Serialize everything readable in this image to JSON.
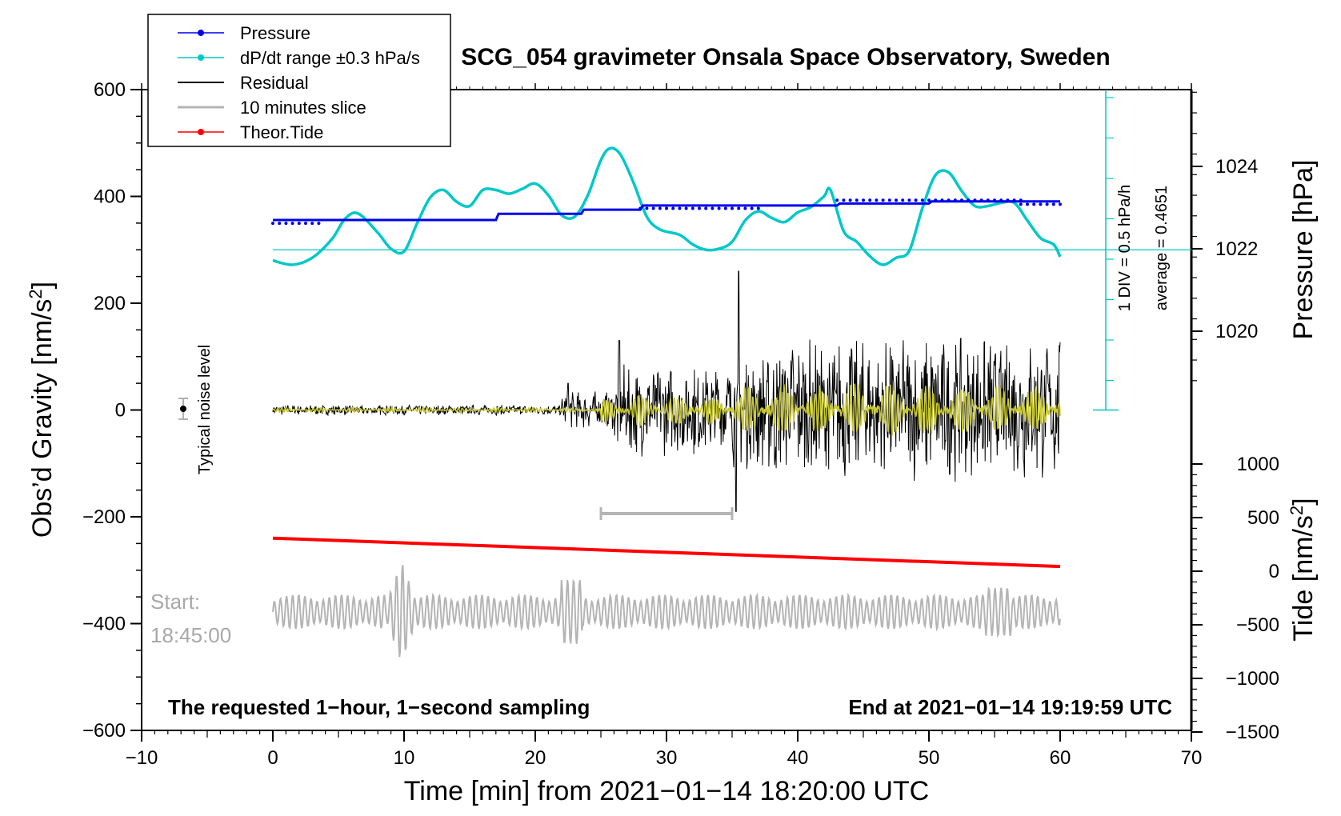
{
  "chart_data": {
    "type": "line",
    "title": "SCG_054 gravimeter Onsala Space Observatory, Sweden",
    "xlabel": "Time [min] from 2021−01−14 18:20:00 UTC",
    "xlim": [
      -10,
      70
    ],
    "x_ticks": [
      -10,
      0,
      10,
      20,
      30,
      40,
      50,
      60,
      70
    ],
    "x_tick_labels": [
      "−10",
      "0",
      "10",
      "20",
      "30",
      "40",
      "50",
      "60",
      "70"
    ],
    "left_axis": {
      "label": "Obs’d Gravity [nm/s²]",
      "label_main": "Obs’d Gravity [nm/s",
      "label_sup": "2",
      "label_tail": "]",
      "ylim": [
        -600,
        600
      ],
      "ticks": [
        -600,
        -400,
        -200,
        0,
        200,
        400,
        600
      ],
      "tick_labels": [
        "−600",
        "−400",
        "−200",
        "0",
        "200",
        "400",
        "600"
      ]
    },
    "right_pressure_axis": {
      "label": "Pressure [hPa]",
      "ticks": [
        1020,
        1022,
        1024
      ],
      "tick_labels": [
        "1020",
        "1022",
        "1024"
      ]
    },
    "right_tide_axis": {
      "label": "Tide [nm/s²]",
      "label_main": "Tide [nm/s",
      "label_sup": "2",
      "label_tail": "]",
      "ticks": [
        1000,
        500,
        0,
        -500,
        -1000,
        -1500
      ],
      "tick_labels": [
        "1000",
        "500",
        "0",
        "−500",
        "−1000",
        "−1500"
      ]
    },
    "legend": {
      "position": "top-left",
      "entries": [
        {
          "label": "Pressure",
          "color": "#0000ee",
          "style": "line-dot"
        },
        {
          "label": "dP/dt range ±0.3 hPa/s",
          "color": "#00c8c8",
          "style": "line-dot"
        },
        {
          "label": "Residual",
          "color": "#000000",
          "style": "line"
        },
        {
          "label": "10 minutes slice",
          "color": "#b4b4b4",
          "style": "line"
        },
        {
          "label": "Theor.Tide",
          "color": "#ff0000",
          "style": "line-dot"
        }
      ]
    },
    "series": [
      {
        "name": "Pressure",
        "color": "#0000ee",
        "x": [
          0,
          4,
          4.5,
          17,
          17.2,
          23.5,
          23.7,
          28,
          28.2,
          43,
          43.2,
          50,
          50.2,
          60
        ],
        "y": [
          1022.7,
          1022.7,
          1022.7,
          1022.7,
          1022.85,
          1022.85,
          1022.95,
          1022.95,
          1023.05,
          1023.05,
          1023.1,
          1023.1,
          1023.15,
          1023.15
        ]
      },
      {
        "name": "dP/dt",
        "color": "#00c8c8",
        "x": [
          0,
          1.5,
          3,
          4.5,
          5.5,
          6.5,
          8,
          9,
          10,
          11,
          12,
          13,
          14,
          15,
          16,
          17,
          18,
          19,
          20,
          21,
          22,
          23,
          24,
          25,
          25.7,
          26.5,
          27.5,
          28.5,
          29.5,
          31,
          32,
          33,
          34,
          35,
          36,
          37,
          38,
          39,
          40,
          41,
          42,
          42.5,
          43.5,
          44.5,
          45.5,
          46.5,
          47.5,
          48.5,
          49.5,
          50.5,
          51.5,
          52.5,
          53.5,
          54.5,
          55.5,
          56.5,
          57.5,
          58.5,
          59.5,
          60
        ],
        "y": [
          280,
          272,
          285,
          320,
          358,
          368,
          332,
          302,
          297,
          350,
          398,
          412,
          390,
          382,
          412,
          412,
          405,
          414,
          424,
          402,
          365,
          362,
          402,
          468,
          490,
          478,
          425,
          362,
          338,
          328,
          310,
          300,
          302,
          315,
          355,
          372,
          360,
          352,
          370,
          380,
          400,
          412,
          335,
          315,
          288,
          272,
          285,
          298,
          378,
          440,
          445,
          410,
          382,
          382,
          388,
          388,
          355,
          322,
          310,
          287
        ]
      },
      {
        "name": "Theor.Tide",
        "color": "#ff0000",
        "x": [
          0,
          60
        ],
        "y": [
          -240,
          -293
        ]
      }
    ],
    "pressure_average_line_y": 300,
    "scale_annotation": {
      "line1": "1 DIV = 0.5 hPa/h",
      "line2": "average = 0.4651"
    },
    "noise_label": "Typical noise level",
    "start_label_line1": "Start:",
    "start_label_line2": "18:45:00",
    "slice_bracket": {
      "x_start": 25,
      "x_end": 35,
      "y": -200
    },
    "bottom_left_note": "The requested 1−hour, 1−second sampling",
    "bottom_right_note": "End at 2021−01−14 19:19:59 UTC"
  }
}
